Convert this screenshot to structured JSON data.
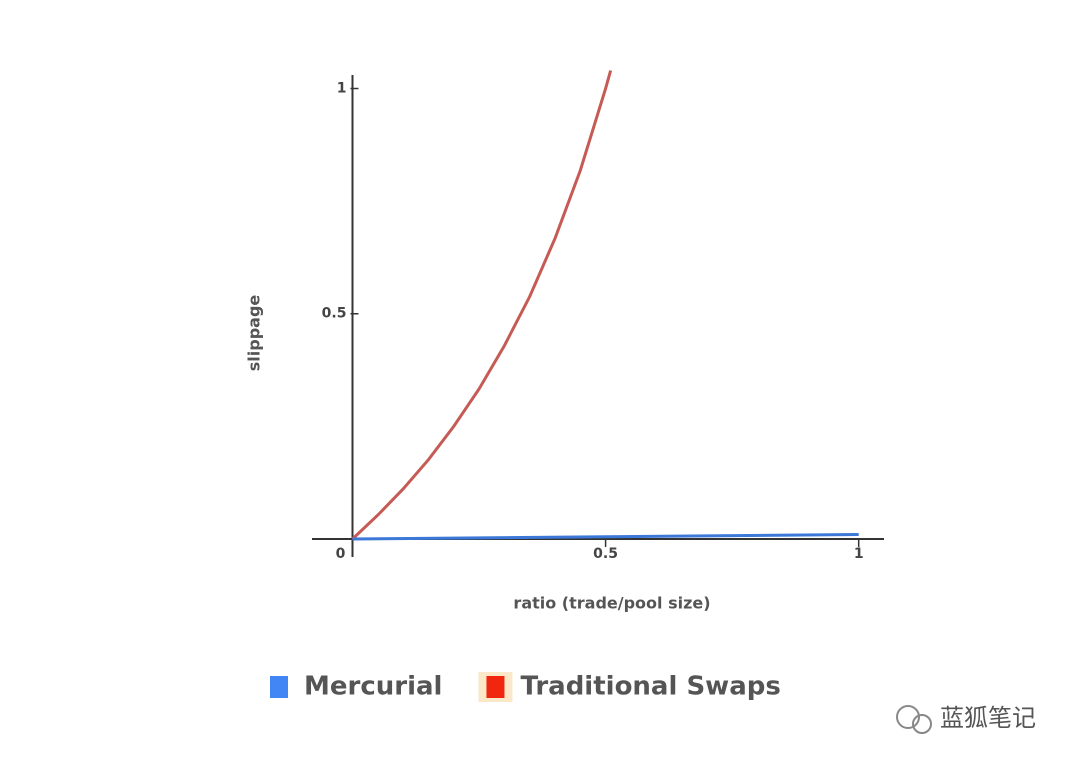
{
  "chart_data": {
    "type": "line",
    "xlabel": "ratio (trade/pool size)",
    "ylabel": "slippage",
    "xlim": [
      -0.08,
      1.05
    ],
    "ylim": [
      -0.04,
      1.03
    ],
    "xticks": [
      0,
      0.5,
      1
    ],
    "yticks": [
      0.5,
      1
    ],
    "series": [
      {
        "name": "Mercurial",
        "color": "#3b78d8",
        "legend_color": "#4285f4",
        "x": [
          0,
          0.5,
          1
        ],
        "values": [
          0,
          0.005,
          0.01
        ]
      },
      {
        "name": "Traditional Swaps",
        "color": "#c65b55",
        "legend_color": "#f0260f",
        "x": [
          0,
          0.05,
          0.1,
          0.15,
          0.2,
          0.25,
          0.3,
          0.35,
          0.4,
          0.45,
          0.5,
          0.51
        ],
        "values": [
          0,
          0.053,
          0.111,
          0.176,
          0.25,
          0.333,
          0.429,
          0.538,
          0.667,
          0.818,
          1.0,
          1.04
        ]
      }
    ],
    "legend": "bottom",
    "watermark": "蓝狐笔记"
  }
}
